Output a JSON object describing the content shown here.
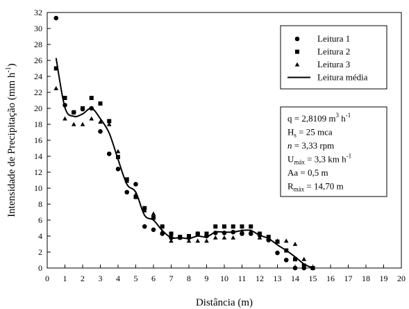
{
  "chart_data": {
    "type": "scatter",
    "xlabel": "Distância  (m)",
    "ylabel": "Intensidade de Precipitação (mm h",
    "ylabel_sup": "-1",
    "ylabel_close": ")",
    "xlim": [
      0,
      20
    ],
    "ylim": [
      0,
      32
    ],
    "xticks": [
      0,
      1,
      2,
      3,
      4,
      5,
      6,
      7,
      8,
      9,
      10,
      11,
      12,
      13,
      14,
      15,
      16,
      17,
      18,
      19,
      20
    ],
    "yticks": [
      0,
      2,
      4,
      6,
      8,
      10,
      12,
      14,
      16,
      18,
      20,
      22,
      24,
      26,
      28,
      30,
      32
    ],
    "grid": false,
    "legend_position": "top-right",
    "series": [
      {
        "name": "Leitura 1",
        "marker": "circle",
        "x": [
          0.5,
          1,
          1.5,
          2,
          2.5,
          3,
          3.5,
          4,
          4.5,
          5,
          5.5,
          6,
          6.5,
          7,
          7.5,
          8,
          8.5,
          9,
          9.5,
          10,
          10.5,
          11,
          11.5,
          12,
          12.5,
          13,
          13.5,
          14,
          14.5,
          15
        ],
        "y": [
          31.3,
          20.4,
          19.5,
          19.9,
          20.0,
          17.1,
          14.3,
          12.4,
          9.5,
          10.5,
          5.2,
          4.8,
          4.3,
          3.8,
          3.8,
          3.8,
          4.3,
          4.0,
          4.4,
          4.4,
          4.5,
          4.3,
          4.3,
          4.1,
          3.5,
          1.9,
          1.0,
          0.0,
          0.0,
          0.0
        ]
      },
      {
        "name": "Leitura 2",
        "marker": "square",
        "x": [
          0.5,
          1,
          1.5,
          2,
          2.5,
          3,
          3.5,
          4,
          4.5,
          5,
          5.5,
          6,
          6.5,
          7,
          7.5,
          8,
          8.5,
          9,
          9.5,
          10,
          10.5,
          11,
          11.5,
          12,
          12.5,
          13,
          13.5,
          14,
          14.5,
          15
        ],
        "y": [
          25.0,
          21.3,
          19.5,
          20.0,
          21.3,
          20.6,
          18.4,
          13.9,
          11.1,
          8.9,
          7.5,
          6.3,
          5.2,
          4.3,
          3.9,
          4.0,
          4.3,
          4.3,
          5.2,
          5.2,
          5.2,
          5.2,
          5.2,
          4.3,
          3.9,
          3.3,
          2.2,
          1.1,
          0.3,
          0.0
        ]
      },
      {
        "name": "Leitura 3",
        "marker": "triangle",
        "x": [
          0.5,
          1,
          1.5,
          2,
          2.5,
          3,
          3.5,
          4,
          4.5,
          5,
          5.5,
          6,
          6.5,
          7,
          7.5,
          8,
          8.5,
          9,
          9.5,
          10,
          10.5,
          11,
          11.5,
          12,
          12.5,
          13,
          13.5,
          14,
          14.5,
          15
        ],
        "y": [
          22.5,
          18.7,
          18.0,
          18.0,
          18.7,
          18.3,
          18.0,
          14.6,
          10.9,
          9.2,
          7.2,
          6.8,
          4.6,
          3.4,
          3.8,
          3.4,
          3.4,
          3.4,
          3.8,
          3.8,
          3.8,
          4.6,
          4.6,
          3.8,
          3.8,
          3.4,
          3.4,
          3.0,
          1.1,
          0.0
        ]
      },
      {
        "name": "Leitura média",
        "marker": "line",
        "x": [
          0.5,
          1,
          1.5,
          2,
          2.5,
          3,
          3.5,
          4,
          4.5,
          5,
          5.5,
          6,
          6.5,
          7,
          7.5,
          8,
          8.5,
          9,
          9.5,
          10,
          10.5,
          11,
          11.5,
          12,
          12.5,
          13,
          13.5,
          14,
          14.5,
          15
        ],
        "y": [
          26.3,
          20.1,
          19.0,
          19.3,
          20.0,
          18.7,
          16.9,
          13.6,
          10.5,
          9.5,
          6.6,
          6.0,
          4.7,
          3.8,
          3.8,
          3.7,
          4.0,
          3.9,
          4.5,
          4.5,
          4.5,
          4.7,
          4.7,
          4.1,
          3.7,
          2.9,
          2.2,
          1.4,
          0.5,
          0.0
        ]
      }
    ],
    "info_box": [
      {
        "prefix": "q = 2,8109 m",
        "sup": "3",
        "mid": " h",
        "sup2": "-1"
      },
      {
        "prefix": "H",
        "sub": "s",
        "mid": " = 25 mca"
      },
      {
        "italic": "n",
        "mid": " = 3,33 rpm"
      },
      {
        "prefix": "U",
        "sub": "máx",
        "mid": " = 3,3 km h",
        "sup2": "-1"
      },
      {
        "prefix": "Aa = 0,5 m"
      },
      {
        "prefix": "R",
        "sub": "máx",
        "mid": " = 14,70 m"
      }
    ]
  }
}
